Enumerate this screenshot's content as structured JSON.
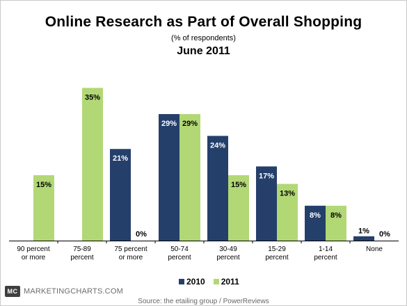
{
  "chart_data": {
    "type": "bar",
    "title": "Online Research as Part of Overall Shopping",
    "subtitle": "(% of respondents)",
    "period": "June 2011",
    "categories": [
      [
        "90 percent",
        "or more"
      ],
      [
        "75-89",
        "percent"
      ],
      [
        "75 percent",
        "or more"
      ],
      [
        "50-74",
        "percent"
      ],
      [
        "30-49",
        "percent"
      ],
      [
        "15-29",
        "percent"
      ],
      [
        "1-14",
        "percent"
      ],
      [
        "None"
      ]
    ],
    "series": [
      {
        "name": "2010",
        "color": "#253f6b",
        "values": [
          null,
          null,
          21,
          29,
          24,
          17,
          8,
          1
        ],
        "labels": [
          "",
          "",
          "21%",
          "29%",
          "24%",
          "17%",
          "8%",
          "1%"
        ]
      },
      {
        "name": "2011",
        "color": "#b2d876",
        "values": [
          15,
          35,
          0,
          29,
          15,
          13,
          8,
          0
        ],
        "labels": [
          "15%",
          "35%",
          "0%",
          "29%",
          "15%",
          "13%",
          "8%",
          "0%"
        ]
      }
    ],
    "ylim": [
      0,
      40
    ],
    "grid": false,
    "legend_position": "bottom"
  },
  "brand": {
    "logo": "MC",
    "site": "MARKETINGCHARTS.COM"
  },
  "source": "Source: the etailing group / PowerReviews"
}
